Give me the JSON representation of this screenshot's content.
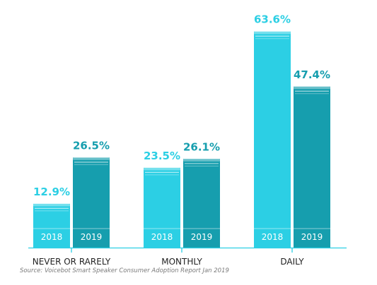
{
  "chart_data": {
    "type": "bar",
    "categories": [
      "NEVER OR RARELY",
      "MONTHLY",
      "DAILY"
    ],
    "series": [
      {
        "name": "2018",
        "values": [
          12.9,
          23.5,
          63.6
        ],
        "color": "#2ccfe4"
      },
      {
        "name": "2019",
        "values": [
          26.5,
          26.1,
          47.4
        ],
        "color": "#169eae"
      }
    ],
    "value_labels": [
      [
        "12.9%",
        "23.5%",
        "63.6%"
      ],
      [
        "26.5%",
        "26.1%",
        "47.4%"
      ]
    ],
    "label_colors": [
      "#2ccfe4",
      "#169eae"
    ],
    "axis_color": "#2ccfe4",
    "ylim": [
      0,
      65
    ],
    "grid": false,
    "legend": "none (year printed inside each bar)",
    "title": "",
    "xlabel": "",
    "ylabel": ""
  },
  "source": "Source: Voicebot Smart Speaker Consumer Adoption Report Jan 2019"
}
